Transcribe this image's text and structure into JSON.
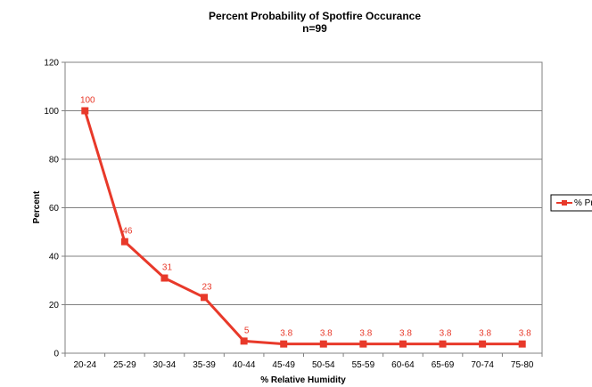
{
  "chart_data": {
    "type": "line",
    "title": "Percent Probability of Spotfire Occurance",
    "subtitle": "n=99",
    "xlabel": "% Relative Humidity",
    "ylabel": "Percent",
    "ylim": [
      0,
      120
    ],
    "yticks": [
      0,
      20,
      40,
      60,
      80,
      100,
      120
    ],
    "grid": true,
    "legend_position": "right",
    "categories": [
      "20-24",
      "25-29",
      "30-34",
      "35-39",
      "40-44",
      "45-49",
      "50-54",
      "55-59",
      "60-64",
      "65-69",
      "70-74",
      "75-80"
    ],
    "series": [
      {
        "name": "% Pr",
        "color": "#e8392a",
        "values": [
          100,
          46,
          31,
          23,
          5,
          3.8,
          3.8,
          3.8,
          3.8,
          3.8,
          3.8,
          3.8
        ],
        "labels": [
          "100",
          "46",
          "31",
          "23",
          "5",
          "3.8",
          "3.8",
          "3.8",
          "3.8",
          "3.8",
          "3.8",
          "3.8"
        ]
      }
    ]
  }
}
